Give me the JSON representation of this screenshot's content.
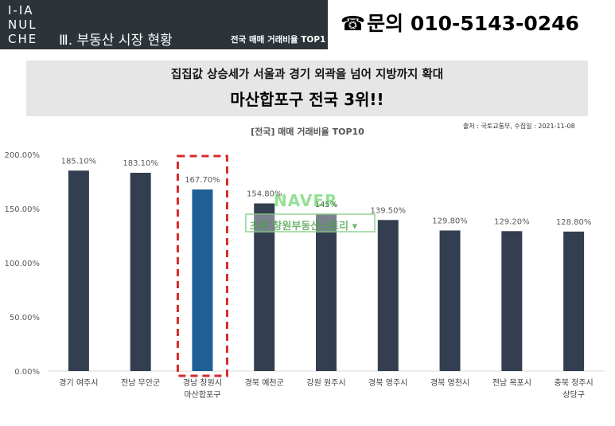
{
  "header": {
    "logo_lines": [
      "I-IA",
      "NUL",
      "CHE"
    ],
    "section_title": "Ⅲ. 부동산 시장 현황",
    "section_subtitle": "전국 매매 거래비율 TOP10",
    "phone_icon": "phone-icon",
    "phone_text": "문의 010-5143-0246"
  },
  "banner": {
    "line1": "집집값 상승세가 서울과 경기 외곽을 넘어 지방까지 확대",
    "line2": "마산합포구 전국 3위!!"
  },
  "source_note": "출처 : 국토교통부, 수집일 : 2021-11-08",
  "watermark": {
    "brand": "NAVER",
    "text": "초리 창원부동산스토리 ▾"
  },
  "colors": {
    "bar": "#333f50",
    "highlight_bar": "#1f5f95",
    "highlight_box": "#d62b2b",
    "header_bg": "#2d3439"
  },
  "chart_data": {
    "type": "bar",
    "title": "[전국] 매매 거래비율 TOP10",
    "categories": [
      [
        "경기 여주시"
      ],
      [
        "전남 무안군"
      ],
      [
        "경남 창원시",
        "마산합포구"
      ],
      [
        "경북 예천군"
      ],
      [
        "강원 원주시"
      ],
      [
        "경북 영주시"
      ],
      [
        "경북 영천시"
      ],
      [
        "전남 목포시"
      ],
      [
        "충북 청주시",
        "상당구"
      ]
    ],
    "values": [
      185.1,
      183.1,
      167.7,
      154.8,
      145.0,
      139.5,
      129.8,
      129.2,
      128.8
    ],
    "value_labels": [
      "185.10%",
      "183.10%",
      "167.70%",
      "154.80%",
      "145%",
      "139.50%",
      "129.80%",
      "129.20%",
      "128.80%"
    ],
    "highlight_index": 2,
    "y_ticks": [
      0,
      50,
      100,
      150,
      200
    ],
    "y_tick_labels": [
      "0.00%",
      "50.00%",
      "100.00%",
      "150.00%",
      "200.00%"
    ],
    "ylim": [
      0,
      200
    ],
    "xlabel": "",
    "ylabel": "",
    "grid": false,
    "legend": "none"
  }
}
